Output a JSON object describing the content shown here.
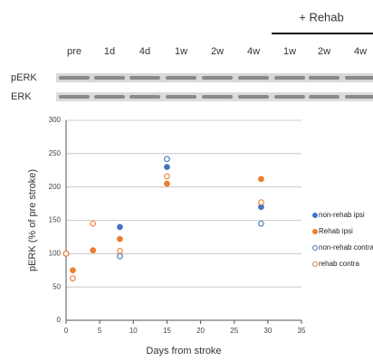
{
  "blot": {
    "group_label": "+ Rehab",
    "lanes": [
      "pre",
      "1d",
      "4d",
      "1w",
      "2w",
      "4w",
      "1w",
      "2w",
      "4w"
    ],
    "rows": [
      "pERK",
      "ERK"
    ]
  },
  "chart_data": {
    "type": "scatter",
    "ylabel": "pERK (% of pre stroke)",
    "xlabel": "Days from stroke",
    "xlim": [
      0,
      35
    ],
    "xticks": [
      0,
      5,
      10,
      15,
      20,
      25,
      30,
      35
    ],
    "ylim": [
      0,
      300
    ],
    "yticks": [
      0,
      50,
      100,
      150,
      200,
      250,
      300
    ],
    "grid": true,
    "legend": "right",
    "series": [
      {
        "name": "non-rehab ipsi",
        "color": "#4472c4",
        "filled": true,
        "x": [
          0,
          8,
          15,
          29
        ],
        "values": [
          100,
          140,
          230,
          170
        ]
      },
      {
        "name": "Rehab ipsi",
        "color": "#ed7d31",
        "filled": true,
        "x": [
          0,
          1,
          4,
          8,
          15,
          29
        ],
        "values": [
          100,
          75,
          105,
          122,
          205,
          212
        ]
      },
      {
        "name": "non-rehab contra",
        "color": "#4472c4",
        "filled": false,
        "x": [
          8,
          15,
          29
        ],
        "values": [
          96,
          242,
          145
        ]
      },
      {
        "name": "rehab contra",
        "color": "#ed7d31",
        "filled": false,
        "x": [
          0,
          1,
          4,
          8,
          15,
          29
        ],
        "values": [
          100,
          63,
          145,
          104,
          216,
          177
        ]
      }
    ]
  }
}
